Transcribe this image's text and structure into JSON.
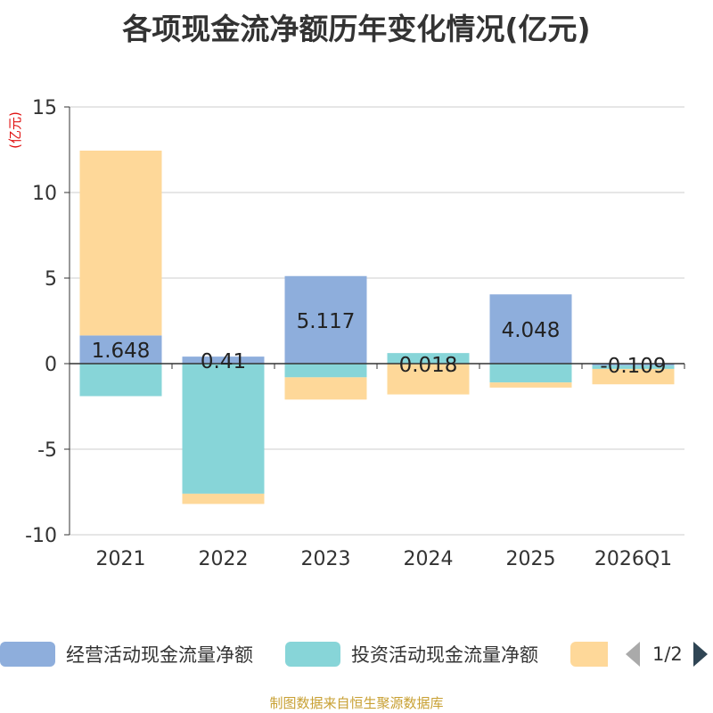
{
  "title": "各项现金流净额历年变化情况(亿元)",
  "source": "制图数据来自恒生聚源数据库",
  "legend": {
    "items": [
      {
        "label": "经营活动现金流量净额",
        "color": "#8eaedc"
      },
      {
        "label": "投资活动现金流量净额",
        "color": "#87d5d8"
      },
      {
        "label": "",
        "color": "#fed899"
      }
    ],
    "page": "1/2"
  },
  "chart_data": {
    "type": "bar",
    "stacked": true,
    "title": "各项现金流净额历年变化情况(亿元)",
    "ylabel": "(亿元)",
    "ylim": [
      -10,
      15
    ],
    "yticks": [
      15,
      10,
      5,
      0,
      -5,
      -10
    ],
    "grid": true,
    "legend_position": "bottom",
    "categories": [
      "2021",
      "2022",
      "2023",
      "2024",
      "2025",
      "2026Q1"
    ],
    "series": [
      {
        "name": "经营活动现金流量净额",
        "color": "#8eaedc",
        "values": [
          1.648,
          0.41,
          5.117,
          0.018,
          4.048,
          -0.109
        ],
        "labels": [
          "1.648",
          "0.41",
          "5.117",
          "0.018",
          "4.048",
          "-0.109"
        ]
      },
      {
        "name": "投资活动现金流量净额",
        "color": "#87d5d8",
        "values": [
          -1.9,
          -7.6,
          -0.8,
          0.6,
          -1.1,
          -0.2
        ]
      },
      {
        "name": "",
        "color": "#fed899",
        "values": [
          10.8,
          -0.6,
          -1.3,
          -1.8,
          -0.3,
          -0.9
        ]
      }
    ]
  }
}
